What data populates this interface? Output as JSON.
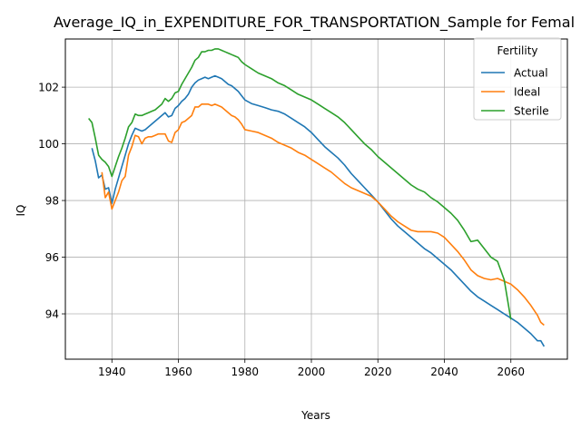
{
  "chart_data": {
    "type": "line",
    "title": "Average_IQ_in_EXPENDITURE_FOR_TRANSPORTATION_Sample for Femal",
    "xlabel": "Years",
    "ylabel": "IQ",
    "xlim": [
      1926,
      2077
    ],
    "ylim": [
      92.4,
      103.7
    ],
    "xticks": [
      1940,
      1960,
      1980,
      2000,
      2020,
      2040,
      2060
    ],
    "yticks": [
      94,
      96,
      98,
      100,
      102
    ],
    "grid": true,
    "legend": {
      "title": "Fertility",
      "position": "top-right"
    },
    "series": [
      {
        "name": "Actual",
        "color": "#1f77b4",
        "points": [
          [
            1934,
            99.85
          ],
          [
            1935,
            99.4
          ],
          [
            1936,
            98.8
          ],
          [
            1937,
            98.9
          ],
          [
            1938,
            98.4
          ],
          [
            1939,
            98.45
          ],
          [
            1940,
            97.9
          ],
          [
            1941,
            98.4
          ],
          [
            1942,
            98.8
          ],
          [
            1943,
            99.2
          ],
          [
            1944,
            99.6
          ],
          [
            1945,
            100.0
          ],
          [
            1946,
            100.3
          ],
          [
            1947,
            100.55
          ],
          [
            1948,
            100.5
          ],
          [
            1949,
            100.45
          ],
          [
            1950,
            100.5
          ],
          [
            1951,
            100.6
          ],
          [
            1952,
            100.7
          ],
          [
            1953,
            100.8
          ],
          [
            1954,
            100.9
          ],
          [
            1955,
            101.0
          ],
          [
            1956,
            101.1
          ],
          [
            1957,
            100.95
          ],
          [
            1958,
            101.0
          ],
          [
            1959,
            101.25
          ],
          [
            1960,
            101.35
          ],
          [
            1961,
            101.5
          ],
          [
            1962,
            101.6
          ],
          [
            1963,
            101.75
          ],
          [
            1964,
            102.0
          ],
          [
            1965,
            102.15
          ],
          [
            1966,
            102.25
          ],
          [
            1967,
            102.3
          ],
          [
            1968,
            102.35
          ],
          [
            1969,
            102.3
          ],
          [
            1970,
            102.35
          ],
          [
            1971,
            102.4
          ],
          [
            1972,
            102.35
          ],
          [
            1973,
            102.3
          ],
          [
            1974,
            102.2
          ],
          [
            1975,
            102.1
          ],
          [
            1976,
            102.05
          ],
          [
            1977,
            101.95
          ],
          [
            1978,
            101.85
          ],
          [
            1979,
            101.7
          ],
          [
            1980,
            101.55
          ],
          [
            1982,
            101.42
          ],
          [
            1984,
            101.35
          ],
          [
            1986,
            101.28
          ],
          [
            1988,
            101.2
          ],
          [
            1990,
            101.15
          ],
          [
            1992,
            101.05
          ],
          [
            1994,
            100.9
          ],
          [
            1996,
            100.75
          ],
          [
            1998,
            100.6
          ],
          [
            2000,
            100.4
          ],
          [
            2002,
            100.15
          ],
          [
            2004,
            99.9
          ],
          [
            2006,
            99.7
          ],
          [
            2008,
            99.5
          ],
          [
            2010,
            99.25
          ],
          [
            2012,
            98.95
          ],
          [
            2014,
            98.7
          ],
          [
            2016,
            98.45
          ],
          [
            2018,
            98.2
          ],
          [
            2020,
            97.95
          ],
          [
            2022,
            97.65
          ],
          [
            2024,
            97.35
          ],
          [
            2026,
            97.1
          ],
          [
            2028,
            96.9
          ],
          [
            2030,
            96.7
          ],
          [
            2032,
            96.5
          ],
          [
            2034,
            96.3
          ],
          [
            2036,
            96.15
          ],
          [
            2038,
            95.95
          ],
          [
            2040,
            95.75
          ],
          [
            2042,
            95.55
          ],
          [
            2044,
            95.3
          ],
          [
            2046,
            95.05
          ],
          [
            2048,
            94.8
          ],
          [
            2050,
            94.6
          ],
          [
            2052,
            94.45
          ],
          [
            2054,
            94.3
          ],
          [
            2056,
            94.15
          ],
          [
            2058,
            94.0
          ],
          [
            2060,
            93.85
          ],
          [
            2062,
            93.7
          ],
          [
            2064,
            93.5
          ],
          [
            2066,
            93.3
          ],
          [
            2068,
            93.05
          ],
          [
            2069,
            93.05
          ],
          [
            2070,
            92.85
          ]
        ]
      },
      {
        "name": "Ideal",
        "color": "#ff7f0e",
        "points": [
          [
            1937,
            99.0
          ],
          [
            1938,
            98.1
          ],
          [
            1939,
            98.3
          ],
          [
            1940,
            97.7
          ],
          [
            1941,
            98.0
          ],
          [
            1942,
            98.3
          ],
          [
            1943,
            98.7
          ],
          [
            1944,
            98.85
          ],
          [
            1945,
            99.6
          ],
          [
            1946,
            99.9
          ],
          [
            1947,
            100.3
          ],
          [
            1948,
            100.25
          ],
          [
            1949,
            100.0
          ],
          [
            1950,
            100.2
          ],
          [
            1951,
            100.25
          ],
          [
            1952,
            100.25
          ],
          [
            1953,
            100.3
          ],
          [
            1954,
            100.35
          ],
          [
            1955,
            100.35
          ],
          [
            1956,
            100.35
          ],
          [
            1957,
            100.1
          ],
          [
            1958,
            100.05
          ],
          [
            1959,
            100.4
          ],
          [
            1960,
            100.5
          ],
          [
            1961,
            100.75
          ],
          [
            1962,
            100.8
          ],
          [
            1963,
            100.9
          ],
          [
            1964,
            101.0
          ],
          [
            1965,
            101.3
          ],
          [
            1966,
            101.3
          ],
          [
            1967,
            101.4
          ],
          [
            1968,
            101.4
          ],
          [
            1969,
            101.4
          ],
          [
            1970,
            101.35
          ],
          [
            1971,
            101.4
          ],
          [
            1972,
            101.35
          ],
          [
            1973,
            101.3
          ],
          [
            1974,
            101.2
          ],
          [
            1975,
            101.1
          ],
          [
            1976,
            101.0
          ],
          [
            1977,
            100.95
          ],
          [
            1978,
            100.85
          ],
          [
            1979,
            100.7
          ],
          [
            1980,
            100.5
          ],
          [
            1982,
            100.45
          ],
          [
            1984,
            100.4
          ],
          [
            1986,
            100.3
          ],
          [
            1988,
            100.2
          ],
          [
            1990,
            100.05
          ],
          [
            1992,
            99.95
          ],
          [
            1994,
            99.85
          ],
          [
            1996,
            99.7
          ],
          [
            1998,
            99.6
          ],
          [
            2000,
            99.45
          ],
          [
            2002,
            99.3
          ],
          [
            2004,
            99.15
          ],
          [
            2006,
            99.0
          ],
          [
            2008,
            98.8
          ],
          [
            2010,
            98.6
          ],
          [
            2012,
            98.45
          ],
          [
            2014,
            98.35
          ],
          [
            2016,
            98.25
          ],
          [
            2018,
            98.15
          ],
          [
            2020,
            97.95
          ],
          [
            2022,
            97.7
          ],
          [
            2024,
            97.45
          ],
          [
            2026,
            97.25
          ],
          [
            2028,
            97.1
          ],
          [
            2030,
            96.95
          ],
          [
            2032,
            96.9
          ],
          [
            2034,
            96.9
          ],
          [
            2036,
            96.9
          ],
          [
            2038,
            96.85
          ],
          [
            2040,
            96.7
          ],
          [
            2042,
            96.45
          ],
          [
            2044,
            96.2
          ],
          [
            2046,
            95.9
          ],
          [
            2048,
            95.55
          ],
          [
            2050,
            95.35
          ],
          [
            2052,
            95.25
          ],
          [
            2054,
            95.2
          ],
          [
            2056,
            95.25
          ],
          [
            2058,
            95.15
          ],
          [
            2060,
            95.05
          ],
          [
            2062,
            94.85
          ],
          [
            2064,
            94.6
          ],
          [
            2066,
            94.3
          ],
          [
            2068,
            93.95
          ],
          [
            2069,
            93.7
          ],
          [
            2070,
            93.6
          ]
        ]
      },
      {
        "name": "Sterile",
        "color": "#2ca02c",
        "points": [
          [
            1933,
            100.9
          ],
          [
            1934,
            100.75
          ],
          [
            1935,
            100.2
          ],
          [
            1936,
            99.6
          ],
          [
            1937,
            99.45
          ],
          [
            1938,
            99.35
          ],
          [
            1939,
            99.2
          ],
          [
            1940,
            98.85
          ],
          [
            1941,
            99.2
          ],
          [
            1942,
            99.55
          ],
          [
            1943,
            99.85
          ],
          [
            1944,
            100.2
          ],
          [
            1945,
            100.6
          ],
          [
            1946,
            100.75
          ],
          [
            1947,
            101.05
          ],
          [
            1948,
            101.0
          ],
          [
            1949,
            101.0
          ],
          [
            1950,
            101.05
          ],
          [
            1951,
            101.1
          ],
          [
            1952,
            101.15
          ],
          [
            1953,
            101.2
          ],
          [
            1954,
            101.3
          ],
          [
            1955,
            101.4
          ],
          [
            1956,
            101.6
          ],
          [
            1957,
            101.5
          ],
          [
            1958,
            101.6
          ],
          [
            1959,
            101.8
          ],
          [
            1960,
            101.85
          ],
          [
            1961,
            102.1
          ],
          [
            1962,
            102.3
          ],
          [
            1963,
            102.5
          ],
          [
            1964,
            102.7
          ],
          [
            1965,
            102.95
          ],
          [
            1966,
            103.05
          ],
          [
            1967,
            103.25
          ],
          [
            1968,
            103.25
          ],
          [
            1969,
            103.3
          ],
          [
            1970,
            103.3
          ],
          [
            1971,
            103.35
          ],
          [
            1972,
            103.35
          ],
          [
            1973,
            103.3
          ],
          [
            1974,
            103.25
          ],
          [
            1975,
            103.2
          ],
          [
            1976,
            103.15
          ],
          [
            1977,
            103.1
          ],
          [
            1978,
            103.05
          ],
          [
            1979,
            102.9
          ],
          [
            1980,
            102.8
          ],
          [
            1982,
            102.65
          ],
          [
            1984,
            102.5
          ],
          [
            1986,
            102.4
          ],
          [
            1988,
            102.3
          ],
          [
            1990,
            102.15
          ],
          [
            1992,
            102.05
          ],
          [
            1994,
            101.9
          ],
          [
            1996,
            101.75
          ],
          [
            1998,
            101.65
          ],
          [
            2000,
            101.55
          ],
          [
            2002,
            101.4
          ],
          [
            2004,
            101.25
          ],
          [
            2006,
            101.1
          ],
          [
            2008,
            100.95
          ],
          [
            2010,
            100.75
          ],
          [
            2012,
            100.5
          ],
          [
            2014,
            100.25
          ],
          [
            2016,
            100.0
          ],
          [
            2018,
            99.8
          ],
          [
            2020,
            99.55
          ],
          [
            2022,
            99.35
          ],
          [
            2024,
            99.15
          ],
          [
            2026,
            98.95
          ],
          [
            2028,
            98.75
          ],
          [
            2030,
            98.55
          ],
          [
            2032,
            98.4
          ],
          [
            2034,
            98.3
          ],
          [
            2036,
            98.1
          ],
          [
            2038,
            97.95
          ],
          [
            2040,
            97.75
          ],
          [
            2042,
            97.55
          ],
          [
            2044,
            97.3
          ],
          [
            2046,
            96.95
          ],
          [
            2048,
            96.55
          ],
          [
            2050,
            96.6
          ],
          [
            2052,
            96.3
          ],
          [
            2054,
            96.0
          ],
          [
            2056,
            95.85
          ],
          [
            2058,
            95.2
          ],
          [
            2060,
            93.8
          ]
        ]
      }
    ]
  }
}
